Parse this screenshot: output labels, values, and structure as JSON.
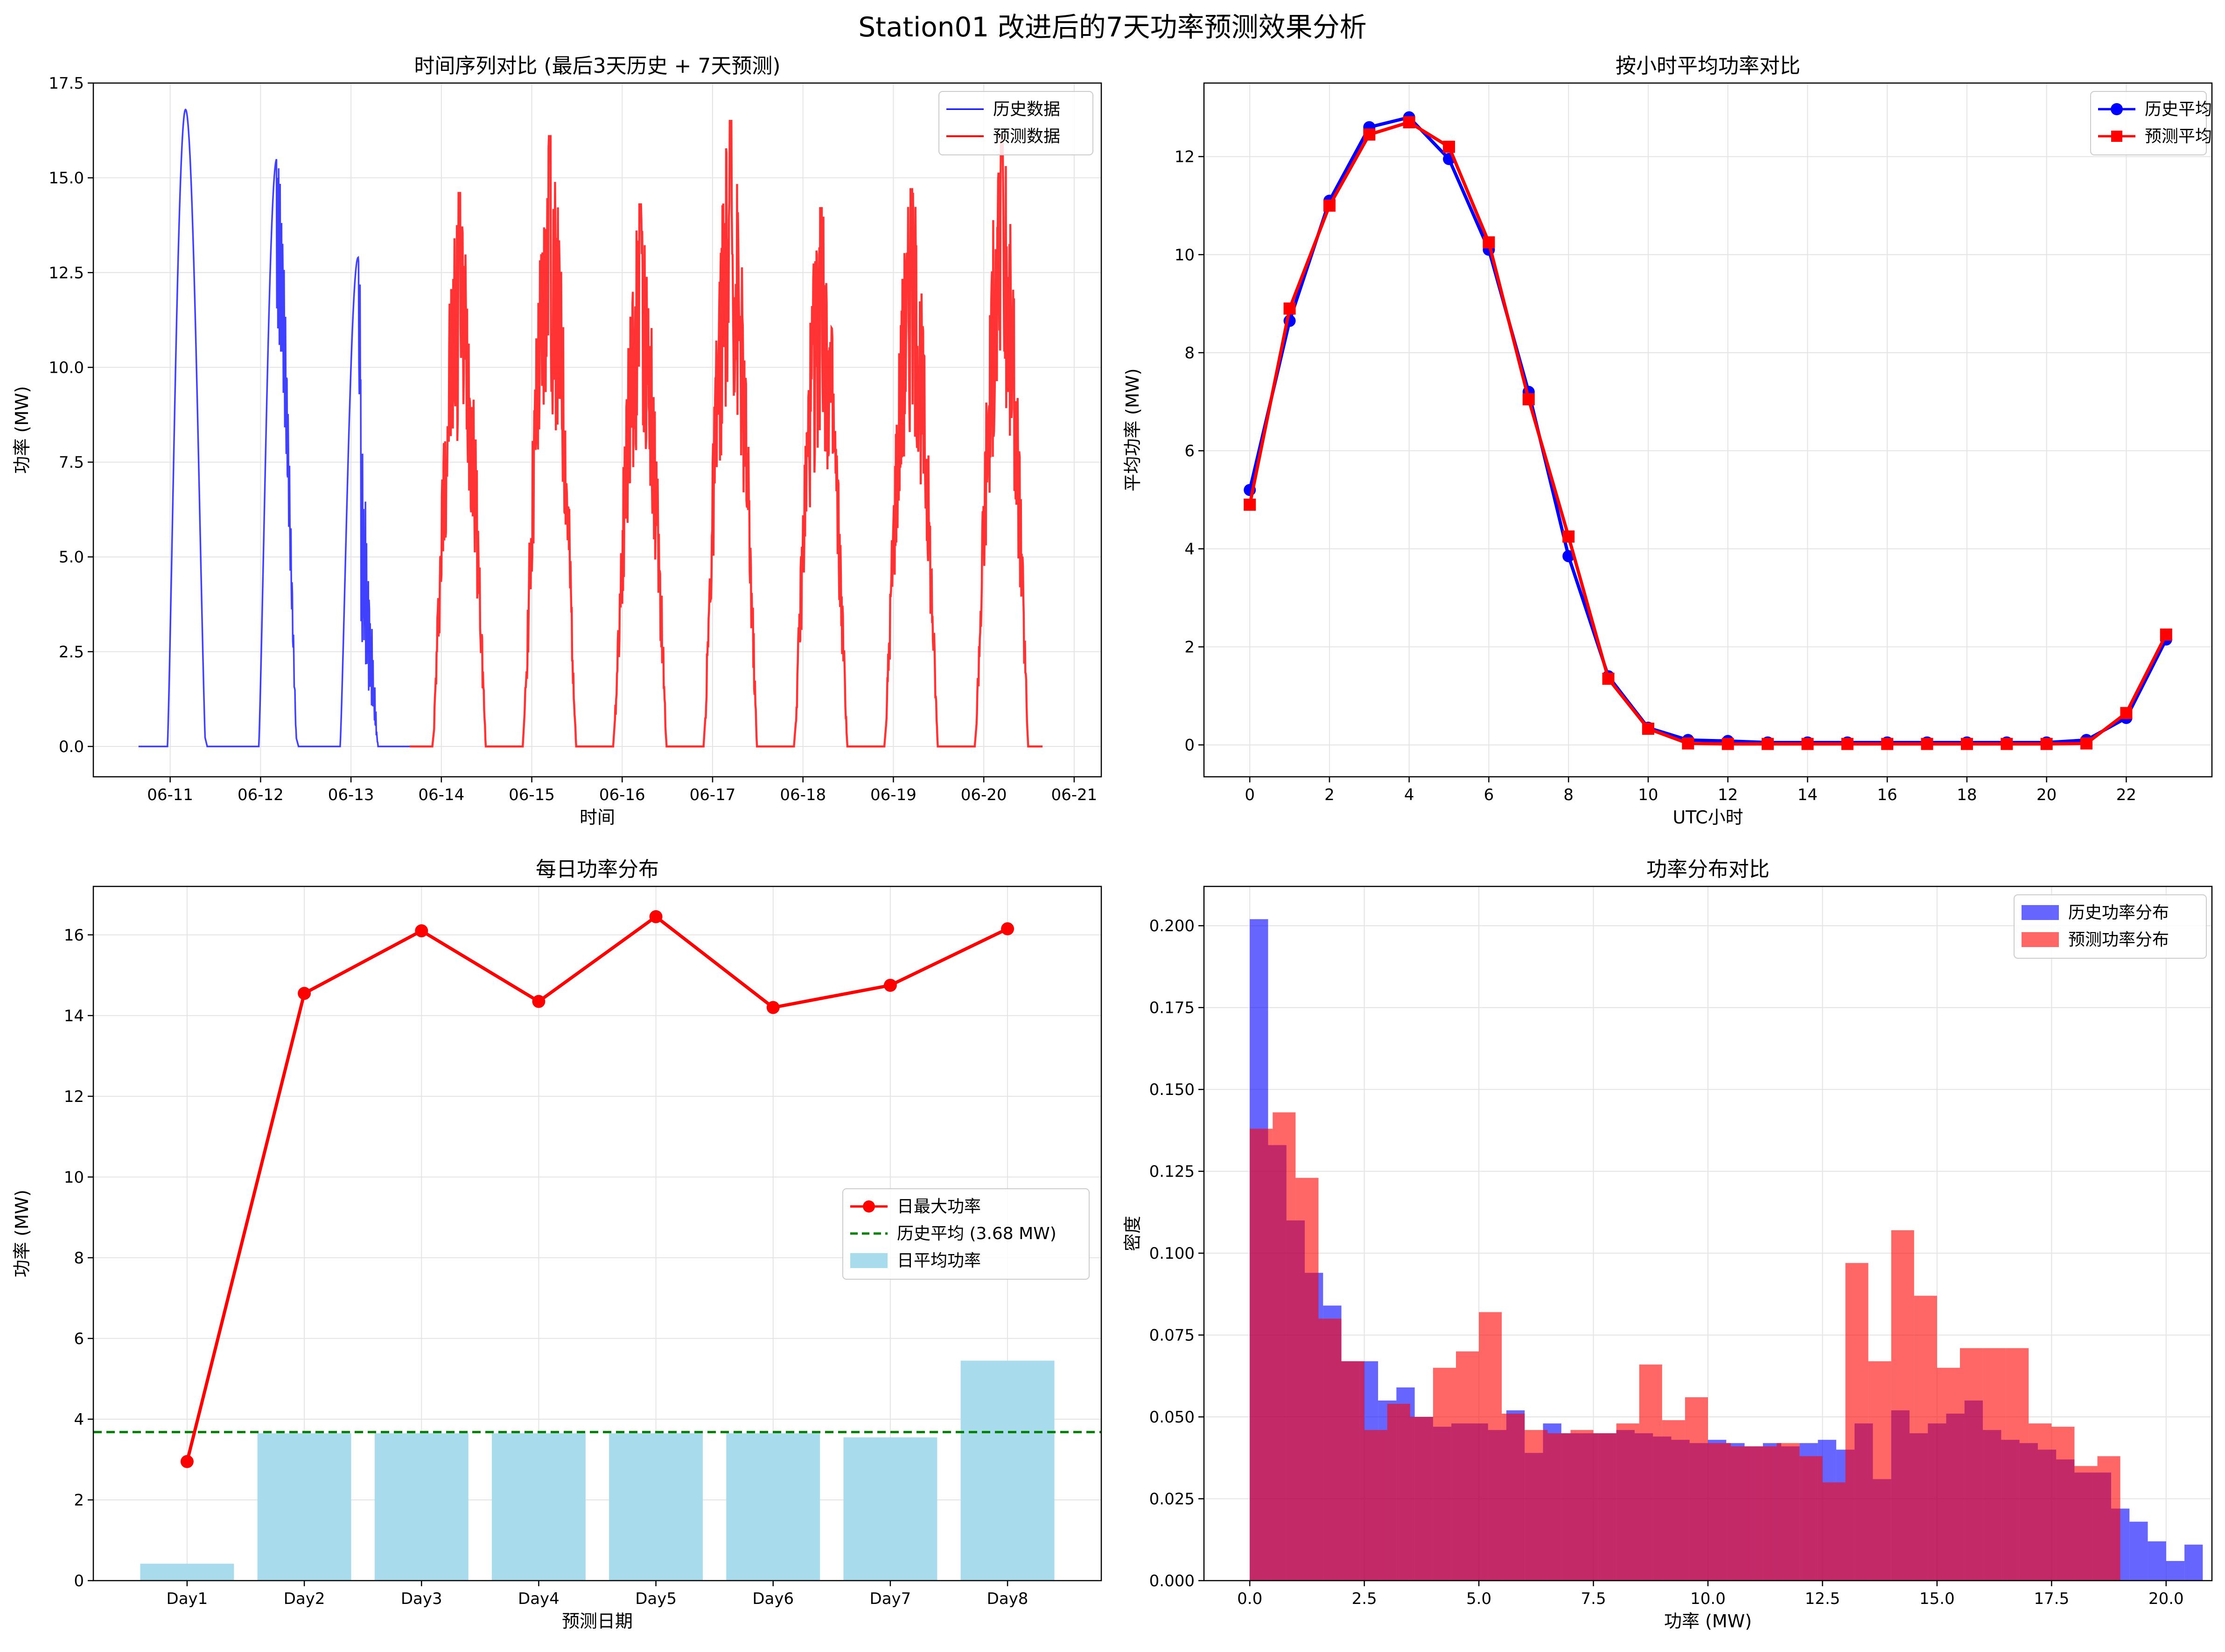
{
  "figure": {
    "suptitle": "Station01 改进后的7天功率预测效果分析"
  },
  "colors": {
    "history": "#0000ff",
    "forecast": "#ff0000",
    "daily_avg_bar": "#a8dced",
    "hist_mean_line": "#008000",
    "overlap": "#c0245a"
  },
  "chart_data": [
    {
      "id": "timeseries",
      "type": "line",
      "title": "时间序列对比 (最后3天历史 + 7天预测)",
      "xlabel": "时间",
      "ylabel": "功率 (MW)",
      "xticks": [
        "06-11",
        "06-12",
        "06-13",
        "06-14",
        "06-15",
        "06-16",
        "06-17",
        "06-18",
        "06-19",
        "06-20",
        "06-21"
      ],
      "xlim": [
        -0.85,
        10.3
      ],
      "ylim": [
        -0.8,
        17.5
      ],
      "yticks": [
        0.0,
        2.5,
        5.0,
        7.5,
        10.0,
        12.5,
        15.0,
        17.5
      ],
      "grid": true,
      "legend": "top-right",
      "series": [
        {
          "name": "历史数据",
          "x_unit": "days since 06-11 00:00 (UTC)",
          "daily_peaks": [
            {
              "day_start": -0.4,
              "peak_x": 0.17,
              "peak": 16.8,
              "end": 0.45
            },
            {
              "day_start": 0.6,
              "peak_x": 1.18,
              "peak": 15.5,
              "end": 1.45
            },
            {
              "day_start": 1.6,
              "peak_x": 2.08,
              "peak": 12.9,
              "end": 2.45
            }
          ],
          "xrange": [
            -0.35,
            2.65
          ]
        },
        {
          "name": "预测数据",
          "x_unit": "days since 06-11 00:00 (UTC)",
          "daily_peaks": [
            {
              "day": "06-14",
              "peak": 14.6
            },
            {
              "day": "06-15",
              "peak": 16.1
            },
            {
              "day": "06-16",
              "peak": 14.3
            },
            {
              "day": "06-17",
              "peak": 16.5
            },
            {
              "day": "06-18",
              "peak": 14.2
            },
            {
              "day": "06-19",
              "peak": 14.7
            },
            {
              "day": "06-20",
              "peak": 16.1
            }
          ],
          "xrange": [
            2.65,
            9.65
          ]
        }
      ]
    },
    {
      "id": "hourly",
      "type": "line",
      "title": "按小时平均功率对比",
      "xlabel": "UTC小时",
      "ylabel": "平均功率 (MW)",
      "xlim": [
        -1.15,
        24.15
      ],
      "ylim": [
        -0.65,
        13.5
      ],
      "xticks": [
        0,
        2,
        4,
        6,
        8,
        10,
        12,
        14,
        16,
        18,
        20,
        22
      ],
      "yticks": [
        0,
        2,
        4,
        6,
        8,
        10,
        12
      ],
      "grid": true,
      "legend": "top-right",
      "x": [
        0,
        1,
        2,
        3,
        4,
        5,
        6,
        7,
        8,
        9,
        10,
        11,
        12,
        13,
        14,
        15,
        16,
        17,
        18,
        19,
        20,
        21,
        22,
        23
      ],
      "series": [
        {
          "name": "历史平均",
          "values": [
            5.2,
            8.65,
            11.1,
            12.6,
            12.8,
            11.95,
            10.1,
            7.2,
            3.85,
            1.4,
            0.35,
            0.1,
            0.08,
            0.05,
            0.05,
            0.05,
            0.05,
            0.05,
            0.05,
            0.05,
            0.05,
            0.1,
            0.55,
            2.15
          ]
        },
        {
          "name": "预测平均",
          "values": [
            4.9,
            8.9,
            11.0,
            12.45,
            12.7,
            12.2,
            10.25,
            7.05,
            4.25,
            1.35,
            0.33,
            0.03,
            0.02,
            0.02,
            0.02,
            0.02,
            0.02,
            0.02,
            0.02,
            0.02,
            0.02,
            0.03,
            0.65,
            2.25
          ]
        }
      ]
    },
    {
      "id": "daily",
      "type": "bar",
      "title": "每日功率分布",
      "xlabel": "预测日期",
      "ylabel": "功率 (MW)",
      "categories": [
        "Day1",
        "Day2",
        "Day3",
        "Day4",
        "Day5",
        "Day6",
        "Day7",
        "Day8"
      ],
      "xlim": [
        -0.8,
        7.8
      ],
      "ylim": [
        0,
        17.2
      ],
      "yticks": [
        0,
        2,
        4,
        6,
        8,
        10,
        12,
        14,
        16
      ],
      "grid": true,
      "legend": "center-right",
      "series": [
        {
          "name": "日最大功率",
          "kind": "line",
          "values": [
            2.95,
            14.55,
            16.1,
            14.35,
            16.45,
            14.2,
            14.75,
            16.15
          ]
        },
        {
          "name": "历史平均 (3.68 MW)",
          "kind": "hline",
          "value": 3.68
        },
        {
          "name": "日平均功率",
          "kind": "bar",
          "values": [
            0.42,
            3.65,
            3.65,
            3.65,
            3.65,
            3.65,
            3.55,
            5.45
          ]
        }
      ]
    },
    {
      "id": "histogram",
      "type": "histogram",
      "title": "功率分布对比",
      "xlabel": "功率 (MW)",
      "ylabel": "密度",
      "xlim": [
        -1.0,
        21.0
      ],
      "ylim": [
        0,
        0.212
      ],
      "xticks": [
        0.0,
        2.5,
        5.0,
        7.5,
        10.0,
        12.5,
        15.0,
        17.5,
        20.0
      ],
      "yticks": [
        0.0,
        0.025,
        0.05,
        0.075,
        0.1,
        0.125,
        0.15,
        0.175,
        0.2
      ],
      "grid": true,
      "legend": "top-right",
      "series": [
        {
          "name": "历史功率分布",
          "bin_start": 0.0,
          "bin_width": 0.4,
          "values": [
            0.202,
            0.133,
            0.11,
            0.094,
            0.084,
            0.067,
            0.067,
            0.055,
            0.059,
            0.05,
            0.047,
            0.048,
            0.048,
            0.046,
            0.052,
            0.039,
            0.048,
            0.045,
            0.045,
            0.045,
            0.046,
            0.045,
            0.044,
            0.043,
            0.042,
            0.043,
            0.042,
            0.041,
            0.042,
            0.041,
            0.042,
            0.043,
            0.04,
            0.048,
            0.031,
            0.052,
            0.045,
            0.048,
            0.051,
            0.055,
            0.046,
            0.043,
            0.042,
            0.04,
            0.037,
            0.033,
            0.033,
            0.022,
            0.018,
            0.012,
            0.006,
            0.011
          ]
        },
        {
          "name": "预测功率分布",
          "bin_start": 0.0,
          "bin_width": 0.5,
          "values": [
            0.138,
            0.143,
            0.123,
            0.08,
            0.067,
            0.046,
            0.054,
            0.05,
            0.065,
            0.07,
            0.082,
            0.051,
            0.046,
            0.045,
            0.046,
            0.045,
            0.048,
            0.066,
            0.049,
            0.056,
            0.042,
            0.041,
            0.041,
            0.042,
            0.038,
            0.03,
            0.097,
            0.067,
            0.107,
            0.087,
            0.065,
            0.071,
            0.071,
            0.071,
            0.048,
            0.047,
            0.035,
            0.038
          ]
        }
      ]
    }
  ]
}
